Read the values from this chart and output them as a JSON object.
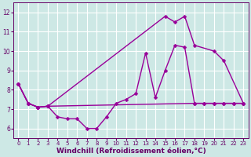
{
  "line1": {
    "x": [
      0,
      1,
      2,
      3,
      4,
      5,
      6,
      7,
      8,
      9,
      10,
      11,
      12,
      13,
      14,
      15,
      16,
      17,
      18,
      19,
      20,
      21,
      22,
      23
    ],
    "y": [
      8.3,
      7.3,
      7.1,
      7.15,
      6.6,
      6.5,
      6.5,
      6.0,
      6.0,
      6.6,
      7.3,
      7.5,
      7.8,
      9.9,
      7.6,
      9.0,
      10.3,
      10.2,
      7.3,
      7.3,
      7.3,
      7.3,
      7.3,
      7.3
    ]
  },
  "line2": {
    "x": [
      0,
      1,
      2,
      3,
      15,
      16,
      17,
      18,
      20,
      21,
      23
    ],
    "y": [
      8.3,
      7.3,
      7.1,
      7.15,
      11.8,
      11.5,
      11.8,
      10.3,
      10.0,
      9.5,
      7.3
    ]
  },
  "line3": {
    "x": [
      0,
      1,
      2,
      3,
      18,
      19,
      20,
      21,
      22,
      23
    ],
    "y": [
      8.3,
      7.3,
      7.1,
      7.15,
      7.3,
      7.3,
      7.3,
      7.3,
      7.3,
      7.3
    ]
  },
  "background_color": "#cde8e5",
  "grid_color": "#ffffff",
  "line_color": "#990099",
  "marker": "D",
  "markersize": 2.5,
  "linewidth": 1.0,
  "xlabel": "Windchill (Refroidissement éolien,°C)",
  "xlabel_fontsize": 6.5,
  "xtick_fontsize": 5,
  "ytick_fontsize": 5.5,
  "xlim": [
    -0.5,
    23.5
  ],
  "ylim": [
    5.5,
    12.5
  ],
  "yticks": [
    6,
    7,
    8,
    9,
    10,
    11,
    12
  ],
  "xticks": [
    0,
    1,
    2,
    3,
    4,
    5,
    6,
    7,
    8,
    9,
    10,
    11,
    12,
    13,
    14,
    15,
    16,
    17,
    18,
    19,
    20,
    21,
    22,
    23
  ]
}
